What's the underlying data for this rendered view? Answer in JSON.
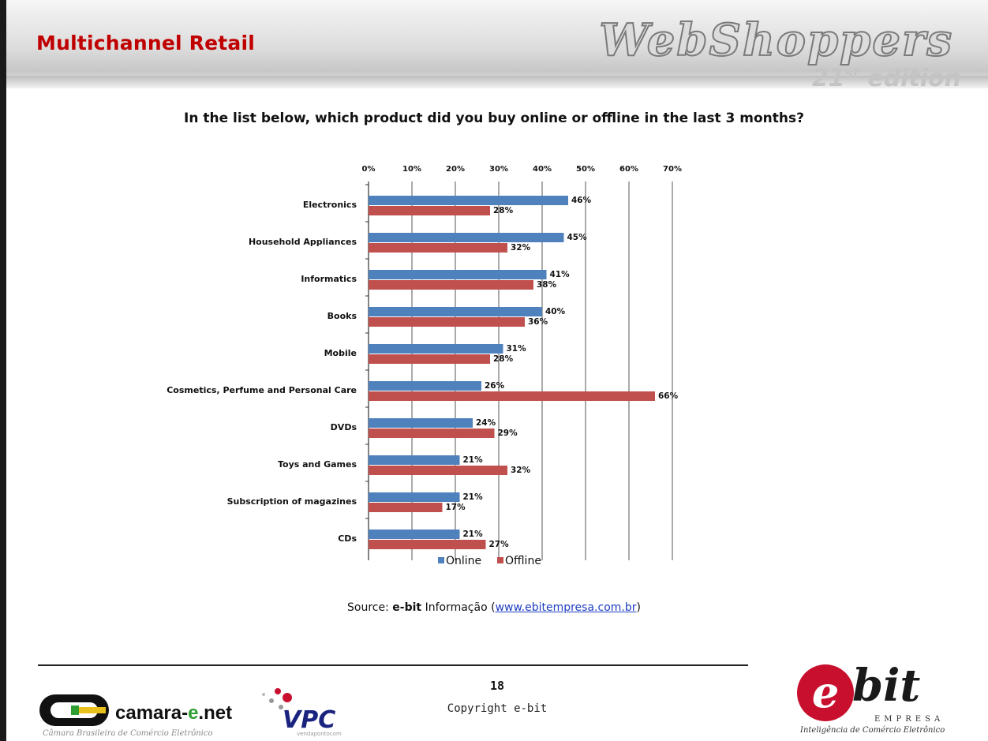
{
  "header": {
    "title": "Multichannel Retail",
    "brand": "WebShoppers",
    "edition_number": "21",
    "edition_suffix": "st",
    "edition_word": "edition"
  },
  "question": "In the list below, which product did you buy online or offline in the last 3 months?",
  "chart_data": {
    "type": "bar",
    "orientation": "horizontal",
    "categories": [
      "Electronics",
      "Household Appliances",
      "Informatics",
      "Books",
      "Mobile",
      "Cosmetics, Perfume and Personal Care",
      "DVDs",
      "Toys and Games",
      "Subscription of magazines",
      "CDs"
    ],
    "series": [
      {
        "name": "Online",
        "color": "#4f81bd",
        "values": [
          46,
          45,
          41,
          40,
          31,
          26,
          24,
          21,
          21,
          21
        ],
        "labels": [
          "46%",
          "45%",
          "41%",
          "40%",
          "31%",
          "26%",
          "24%",
          "21%",
          "21%",
          "21%"
        ]
      },
      {
        "name": "Offline",
        "color": "#c0504d",
        "values": [
          28,
          32,
          38,
          36,
          28,
          66,
          29,
          32,
          17,
          27
        ],
        "labels": [
          "28%",
          "32%",
          "38%",
          "36%",
          "28%",
          "66%",
          "29%",
          "32%",
          "17%",
          "27%"
        ]
      }
    ],
    "xlim": [
      0,
      70
    ],
    "xticks": [
      "0%",
      "10%",
      "20%",
      "30%",
      "40%",
      "50%",
      "60%",
      "70%"
    ],
    "xaxis_position": "top",
    "grid": true,
    "legend_position": "bottom"
  },
  "source": {
    "prefix": "Source:",
    "brand": "e-bit",
    "text": "Informação",
    "link": "www.ebitempresa.com.br"
  },
  "footer": {
    "page_number": "18",
    "copyright": "Copyright e-bit",
    "camara_name_main": "camara-",
    "camara_name_e": "e",
    "camara_name_tail": ".net",
    "camara_subtitle": "Câmara Brasileira de Comércio Eletrônico",
    "vpc_text": "VPC",
    "vpc_sub": "vendapontocom",
    "ebit_word": "bit",
    "ebit_e": "e",
    "ebit_empresa": "EMPRESA",
    "ebit_tagline": "Inteligência de Comércio Eletrônico"
  }
}
